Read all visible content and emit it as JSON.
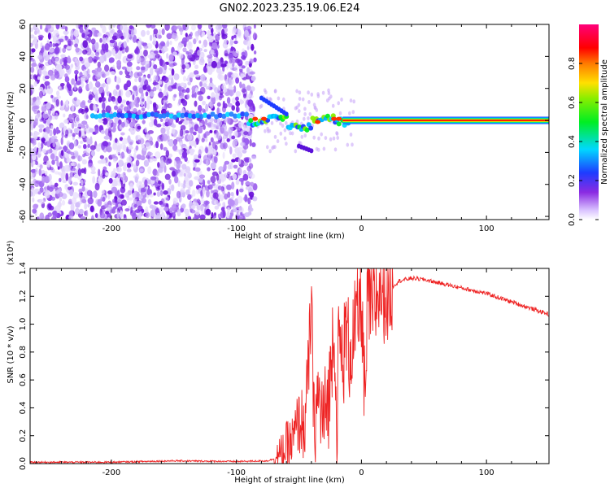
{
  "title": "GN02.2023.235.19.06.E24",
  "chart_data": [
    {
      "type": "heatmap",
      "xlabel": "Height of straight line (km)",
      "ylabel": "Frequency (Hz)",
      "xlim": [
        -265,
        150
      ],
      "ylim": [
        -62,
        60
      ],
      "xticks": [
        "-200",
        "-100",
        "0",
        "100"
      ],
      "yticks": [
        "60",
        "40",
        "20",
        "0",
        "-20",
        "-40",
        "-60"
      ],
      "colorbar": {
        "label": "Normalized spectral amplitude",
        "range": [
          0,
          1
        ],
        "ticks": [
          "0.0",
          "0.2",
          "0.4",
          "0.6",
          "0.8"
        ],
        "colormap": "hsv-like (white/purple → blue → cyan → green → yellow → red → pink)"
      },
      "features": {
        "noise_region_x": [
          -265,
          -85
        ],
        "signal_trace_freq_hz": 0,
        "strong_signal_from_x": -15,
        "strong_signal_to_x": 150
      },
      "grid": false
    },
    {
      "type": "line",
      "xlabel": "Height of straight line (km)",
      "ylabel": "SNR (10 * v/v)",
      "y_scale_label": "(x10⁴)",
      "xlim": [
        -265,
        150
      ],
      "ylim": [
        0,
        1.4
      ],
      "xticks": [
        "-200",
        "-100",
        "0",
        "100"
      ],
      "yticks": [
        "0.0",
        "0.2",
        "0.4",
        "0.6",
        "0.8",
        "1.0",
        "1.2",
        "1.4"
      ],
      "series": [
        {
          "color": "#ee2222",
          "x": [
            -265,
            -200,
            -150,
            -100,
            -75,
            -65,
            -60,
            -55,
            -50,
            -45,
            -42,
            -40,
            -38,
            -35,
            -30,
            -25,
            -22,
            -20,
            -18,
            -15,
            -12,
            -10,
            -5,
            0,
            3,
            5,
            8,
            10,
            15,
            20,
            25,
            30,
            40,
            50,
            60,
            70,
            80,
            90,
            100,
            110,
            120,
            130,
            140,
            150
          ],
          "y": [
            0.01,
            0.01,
            0.02,
            0.015,
            0.02,
            0.05,
            0.12,
            0.15,
            0.3,
            0.28,
            0.75,
            1.15,
            0.25,
            0.48,
            0.3,
            0.55,
            1.15,
            0.2,
            0.9,
            0.72,
            0.95,
            0.8,
            0.95,
            1.2,
            0.3,
            1.25,
            1.05,
            1.12,
            1.28,
            1.22,
            1.27,
            1.31,
            1.33,
            1.32,
            1.3,
            1.28,
            1.26,
            1.24,
            1.22,
            1.19,
            1.16,
            1.13,
            1.1,
            1.07
          ]
        }
      ],
      "grid": false
    }
  ]
}
